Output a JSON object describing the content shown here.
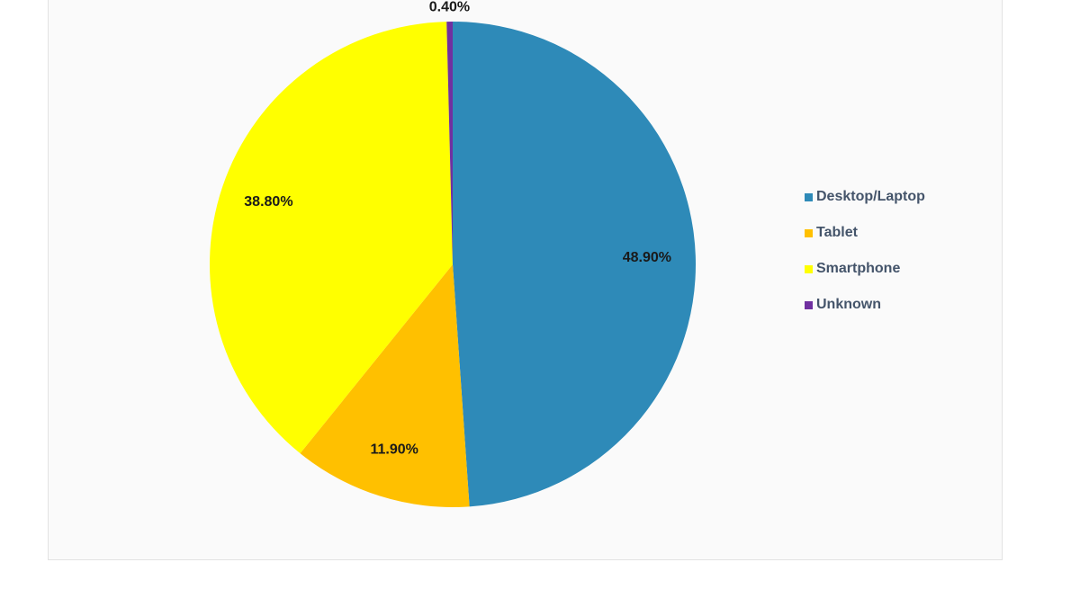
{
  "chart_data": {
    "type": "pie",
    "categories": [
      "Desktop/Laptop",
      "Tablet",
      "Smartphone",
      "Unknown"
    ],
    "values": [
      48.9,
      11.9,
      38.8,
      0.4
    ],
    "data_labels": [
      "48.90%",
      "11.90%",
      "38.80%",
      "0.40%"
    ],
    "colors": [
      "#2e8ab8",
      "#ffc000",
      "#ffff00",
      "#7030a0"
    ],
    "start_angle_deg": 0,
    "direction": "clockwise",
    "legend_position": "right",
    "title": ""
  },
  "legend": {
    "items": [
      {
        "label": "Desktop/Laptop",
        "color": "#2e8ab8"
      },
      {
        "label": "Tablet",
        "color": "#ffc000"
      },
      {
        "label": "Smartphone",
        "color": "#ffff00"
      },
      {
        "label": "Unknown",
        "color": "#7030a0"
      }
    ]
  }
}
